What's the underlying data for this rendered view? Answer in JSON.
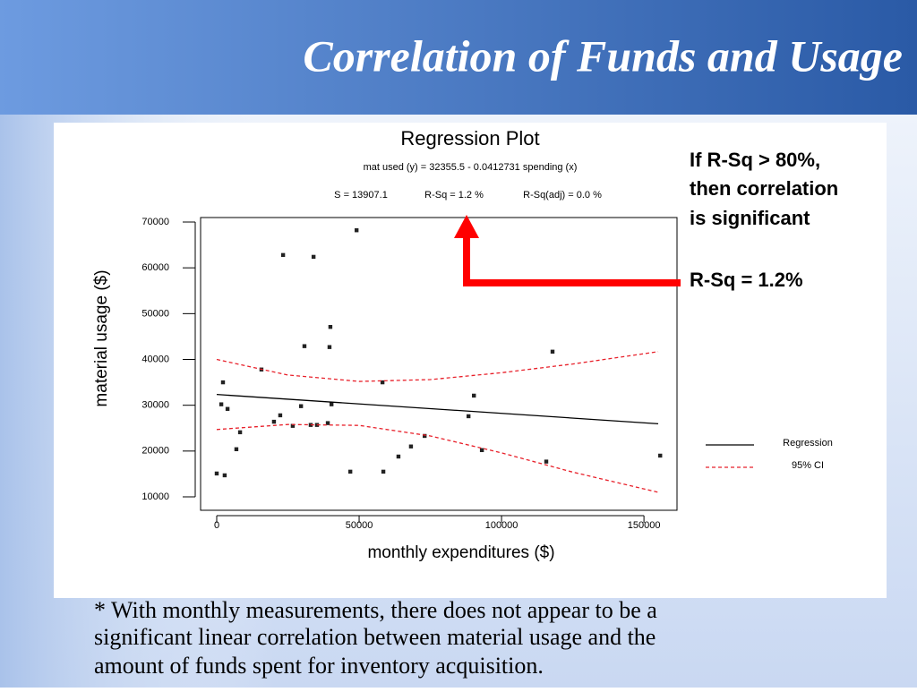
{
  "title": "Correlation of Funds and Usage",
  "chart_data": {
    "type": "scatter",
    "title": "Regression Plot",
    "subtitle": "mat used (y) = 32355.5 - 0.0412731 spending (x)",
    "stats": [
      "S = 13907.1",
      "R-Sq = 1.2 %",
      "R-Sq(adj) = 0.0 %"
    ],
    "x_label": "monthly expenditures ($)",
    "y_label": "material usage ($)",
    "xlim": [
      -5660,
      161600
    ],
    "ylim": [
      7070,
      70980
    ],
    "xticks": [
      0,
      50000,
      100000,
      150000
    ],
    "yticks": [
      10000,
      20000,
      30000,
      40000,
      50000,
      60000,
      70000
    ],
    "legend": "right",
    "points": {
      "color": "#222222",
      "x": [
        0,
        1600,
        2200,
        2800,
        3800,
        6900,
        8200,
        15700,
        20100,
        22300,
        23300,
        26700,
        29600,
        30800,
        33000,
        34000,
        35200,
        39000,
        39600,
        39900,
        40300,
        46900,
        49100,
        58200,
        58500,
        63800,
        68200,
        73000,
        88400,
        90300,
        93100,
        115700,
        117900,
        155700
      ],
      "y": [
        15100,
        30200,
        35000,
        14700,
        29200,
        20400,
        24100,
        37800,
        26400,
        27800,
        62800,
        25500,
        29800,
        42900,
        25700,
        62400,
        25700,
        26100,
        42700,
        47100,
        30200,
        15500,
        68200,
        35000,
        15500,
        18800,
        21000,
        23300,
        27600,
        32100,
        20200,
        17700,
        41700,
        19000
      ]
    },
    "series": [
      {
        "name": "Regression",
        "color": "#000000",
        "x": [
          0,
          155000
        ],
        "values": [
          32356,
          25958
        ]
      },
      {
        "name": "95% CI",
        "color": "#e8202a",
        "dash": true,
        "x": [
          0,
          25000,
          50000,
          75000,
          100000,
          125000,
          155000
        ],
        "upper": [
          40000,
          36600,
          35200,
          35600,
          37100,
          39000,
          41700
        ],
        "lower": [
          24700,
          25800,
          25600,
          23300,
          19600,
          15400,
          11000
        ]
      }
    ]
  },
  "annotation": [
    "If R-Sq > 80%,",
    "then correlation",
    "is significant",
    "R-Sq = 1.2%"
  ],
  "footnote": [
    "* With monthly measurements, there does not appear to be a",
    "significant linear correlation between material usage and the",
    "amount of funds spent for inventory acquisition."
  ]
}
